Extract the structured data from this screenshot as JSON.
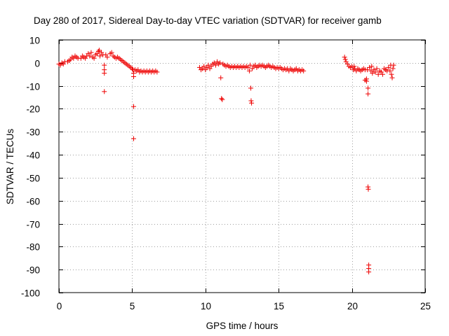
{
  "chart_data": {
    "type": "scatter",
    "title": "Day 280 of 2017, Sidereal Day-to-day VTEC variation (SDTVAR) for receiver gamb",
    "xlabel": "GPS time / hours",
    "ylabel": "SDTVAR / TECUs",
    "xlim": [
      0,
      25
    ],
    "ylim": [
      -100,
      10
    ],
    "xticks": [
      0,
      5,
      10,
      15,
      20,
      25
    ],
    "xtick_labels": [
      "0",
      "5",
      "10",
      "15",
      "20",
      "25"
    ],
    "yticks": [
      10,
      0,
      -10,
      -20,
      -30,
      -40,
      -50,
      -60,
      -70,
      -80,
      -90,
      -100
    ],
    "ytick_labels": [
      "10",
      "0",
      "-10",
      "-20",
      "-30",
      "-40",
      "-50",
      "-60",
      "-70",
      "-80",
      "-90",
      "-100"
    ],
    "grid": true,
    "marker": "+",
    "color": "#ee0000",
    "series": [
      {
        "name": "SDTVAR",
        "points": [
          [
            0.0,
            -0.5
          ],
          [
            0.1,
            -1.0
          ],
          [
            0.2,
            0.0
          ],
          [
            0.3,
            -0.5
          ],
          [
            0.4,
            0.5
          ],
          [
            0.6,
            0.5
          ],
          [
            0.7,
            1.0
          ],
          [
            0.8,
            1.5
          ],
          [
            0.9,
            2.5
          ],
          [
            1.0,
            2.0
          ],
          [
            1.1,
            3.0
          ],
          [
            1.2,
            2.5
          ],
          [
            1.3,
            2.0
          ],
          [
            1.5,
            2.0
          ],
          [
            1.6,
            3.0
          ],
          [
            1.7,
            2.5
          ],
          [
            1.8,
            2.0
          ],
          [
            1.9,
            3.0
          ],
          [
            2.0,
            4.0
          ],
          [
            2.1,
            3.0
          ],
          [
            2.2,
            4.5
          ],
          [
            2.3,
            2.5
          ],
          [
            2.4,
            2.0
          ],
          [
            2.5,
            3.5
          ],
          [
            2.6,
            4.0
          ],
          [
            2.7,
            5.0
          ],
          [
            2.75,
            5.5
          ],
          [
            2.8,
            3.0
          ],
          [
            2.9,
            4.5
          ],
          [
            3.0,
            3.5
          ],
          [
            3.1,
            -1.0
          ],
          [
            3.1,
            -3.0
          ],
          [
            3.1,
            -4.5
          ],
          [
            3.1,
            -12.5
          ],
          [
            3.2,
            3.5
          ],
          [
            3.3,
            2.5
          ],
          [
            3.5,
            4.0
          ],
          [
            3.6,
            4.5
          ],
          [
            3.7,
            3.0
          ],
          [
            3.8,
            2.5
          ],
          [
            3.9,
            2.0
          ],
          [
            4.0,
            2.5
          ],
          [
            4.1,
            2.0
          ],
          [
            4.2,
            1.5
          ],
          [
            4.3,
            1.0
          ],
          [
            4.4,
            0.5
          ],
          [
            4.5,
            0.0
          ],
          [
            4.6,
            -0.5
          ],
          [
            4.7,
            -1.0
          ],
          [
            4.8,
            -1.5
          ],
          [
            4.9,
            -2.0
          ],
          [
            5.0,
            -2.5
          ],
          [
            5.05,
            -3.0
          ],
          [
            5.1,
            -4.5
          ],
          [
            5.1,
            -6.0
          ],
          [
            5.1,
            -19.0
          ],
          [
            5.1,
            -33.0
          ],
          [
            5.2,
            -3.0
          ],
          [
            5.3,
            -3.5
          ],
          [
            5.4,
            -3.0
          ],
          [
            5.5,
            -4.0
          ],
          [
            5.6,
            -3.5
          ],
          [
            5.7,
            -4.0
          ],
          [
            5.8,
            -3.5
          ],
          [
            5.9,
            -4.0
          ],
          [
            6.0,
            -3.5
          ],
          [
            6.1,
            -4.0
          ],
          [
            6.2,
            -3.5
          ],
          [
            6.3,
            -4.0
          ],
          [
            6.4,
            -3.5
          ],
          [
            6.5,
            -4.0
          ],
          [
            6.6,
            -3.5
          ],
          [
            6.7,
            -4.0
          ],
          [
            9.6,
            -2.0
          ],
          [
            9.7,
            -3.0
          ],
          [
            9.8,
            -2.5
          ],
          [
            9.9,
            -1.5
          ],
          [
            10.0,
            -3.0
          ],
          [
            10.1,
            -2.0
          ],
          [
            10.2,
            -1.0
          ],
          [
            10.3,
            -2.5
          ],
          [
            10.4,
            -1.5
          ],
          [
            10.5,
            -0.5
          ],
          [
            10.6,
            0.0
          ],
          [
            10.7,
            -1.0
          ],
          [
            10.8,
            0.5
          ],
          [
            10.9,
            -0.5
          ],
          [
            11.0,
            0.0
          ],
          [
            11.05,
            -6.5
          ],
          [
            11.1,
            -15.5
          ],
          [
            11.15,
            -16.0
          ],
          [
            11.2,
            -0.5
          ],
          [
            11.3,
            -1.0
          ],
          [
            11.4,
            -1.5
          ],
          [
            11.5,
            -1.0
          ],
          [
            11.6,
            -1.5
          ],
          [
            11.7,
            -2.0
          ],
          [
            11.8,
            -1.5
          ],
          [
            11.9,
            -2.0
          ],
          [
            12.0,
            -1.5
          ],
          [
            12.1,
            -2.0
          ],
          [
            12.2,
            -1.5
          ],
          [
            12.3,
            -2.0
          ],
          [
            12.4,
            -1.5
          ],
          [
            12.5,
            -2.0
          ],
          [
            12.6,
            -1.5
          ],
          [
            12.7,
            -2.0
          ],
          [
            12.8,
            -1.5
          ],
          [
            12.9,
            -2.0
          ],
          [
            13.0,
            -3.5
          ],
          [
            13.05,
            -1.0
          ],
          [
            13.1,
            -11.0
          ],
          [
            13.12,
            -16.5
          ],
          [
            13.15,
            -17.5
          ],
          [
            13.2,
            -2.5
          ],
          [
            13.3,
            -1.5
          ],
          [
            13.4,
            -1.0
          ],
          [
            13.5,
            -2.0
          ],
          [
            13.6,
            -1.5
          ],
          [
            13.7,
            -1.0
          ],
          [
            13.8,
            -1.5
          ],
          [
            13.9,
            -1.0
          ],
          [
            14.0,
            -1.5
          ],
          [
            14.1,
            -2.0
          ],
          [
            14.2,
            -1.5
          ],
          [
            14.3,
            -1.0
          ],
          [
            14.4,
            -1.5
          ],
          [
            14.5,
            -2.0
          ],
          [
            14.6,
            -1.5
          ],
          [
            14.7,
            -2.0
          ],
          [
            14.8,
            -2.5
          ],
          [
            14.9,
            -2.0
          ],
          [
            15.0,
            -2.5
          ],
          [
            15.1,
            -2.0
          ],
          [
            15.2,
            -2.5
          ],
          [
            15.3,
            -3.0
          ],
          [
            15.4,
            -2.5
          ],
          [
            15.5,
            -3.0
          ],
          [
            15.6,
            -2.5
          ],
          [
            15.7,
            -3.5
          ],
          [
            15.8,
            -2.5
          ],
          [
            15.9,
            -3.0
          ],
          [
            16.0,
            -3.5
          ],
          [
            16.1,
            -3.0
          ],
          [
            16.2,
            -2.5
          ],
          [
            16.3,
            -3.5
          ],
          [
            16.4,
            -3.0
          ],
          [
            16.5,
            -3.5
          ],
          [
            16.6,
            -3.0
          ],
          [
            16.7,
            -3.5
          ],
          [
            19.5,
            2.5
          ],
          [
            19.55,
            1.5
          ],
          [
            19.6,
            0.5
          ],
          [
            19.7,
            -0.5
          ],
          [
            19.8,
            -1.5
          ],
          [
            19.9,
            -2.0
          ],
          [
            20.0,
            -1.5
          ],
          [
            20.1,
            -3.0
          ],
          [
            20.15,
            -1.5
          ],
          [
            20.2,
            -2.5
          ],
          [
            20.3,
            -3.5
          ],
          [
            20.4,
            -2.5
          ],
          [
            20.5,
            -3.0
          ],
          [
            20.6,
            -3.5
          ],
          [
            20.7,
            -3.0
          ],
          [
            20.8,
            -2.5
          ],
          [
            20.9,
            -3.0
          ],
          [
            20.9,
            -7.5
          ],
          [
            21.0,
            -8.0
          ],
          [
            21.0,
            -7.0
          ],
          [
            21.05,
            -3.0
          ],
          [
            21.1,
            -11.0
          ],
          [
            21.1,
            -13.5
          ],
          [
            21.1,
            -54.0
          ],
          [
            21.12,
            -55.0
          ],
          [
            21.15,
            -88.0
          ],
          [
            21.15,
            -89.5
          ],
          [
            21.15,
            -91.0
          ],
          [
            21.2,
            -2.0
          ],
          [
            21.3,
            -3.5
          ],
          [
            21.35,
            -1.5
          ],
          [
            21.4,
            -4.5
          ],
          [
            21.5,
            -3.0
          ],
          [
            21.6,
            -4.0
          ],
          [
            21.7,
            -2.5
          ],
          [
            21.8,
            -5.0
          ],
          [
            21.9,
            -3.5
          ],
          [
            22.0,
            -4.0
          ],
          [
            22.1,
            -5.0
          ],
          [
            22.2,
            -2.5
          ],
          [
            22.3,
            -3.0
          ],
          [
            22.4,
            -3.5
          ],
          [
            22.5,
            -2.0
          ],
          [
            22.6,
            -3.5
          ],
          [
            22.65,
            -1.0
          ],
          [
            22.7,
            -5.0
          ],
          [
            22.75,
            -6.5
          ],
          [
            22.8,
            -2.5
          ],
          [
            22.85,
            -1.0
          ]
        ]
      }
    ]
  }
}
